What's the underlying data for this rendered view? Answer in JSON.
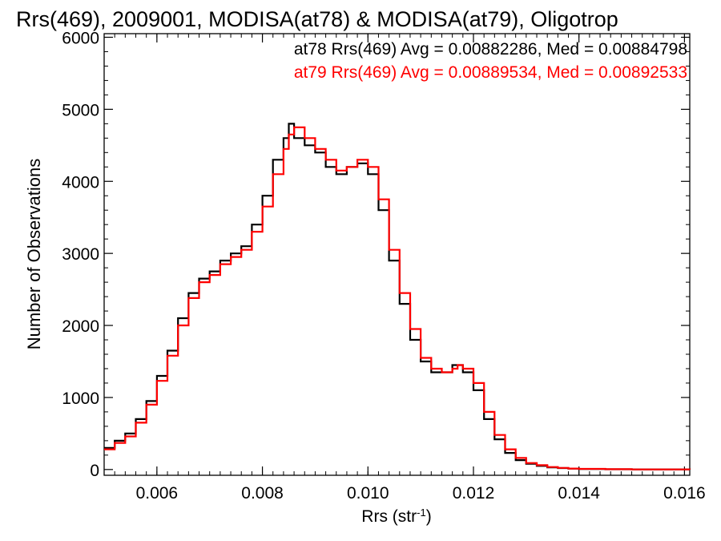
{
  "chart_data": {
    "type": "line",
    "title": "Rrs(469), 2009001, MODISA(at78) & MODISA(at79), Oligotrop",
    "xlabel": "Rrs (str",
    "xlabel_sup": "-1",
    "xlabel_close": ")",
    "ylabel": "Number of Observations",
    "xlim": [
      0.005,
      0.0161
    ],
    "ylim": [
      -80,
      6050
    ],
    "x_ticks": [
      0.006,
      0.008,
      0.01,
      0.012,
      0.014,
      0.016
    ],
    "x_tick_labels": [
      "0.006",
      "0.008",
      "0.010",
      "0.012",
      "0.014",
      "0.016"
    ],
    "y_ticks": [
      0,
      1000,
      2000,
      3000,
      4000,
      5000,
      6000
    ],
    "y_tick_labels": [
      "0",
      "1000",
      "2000",
      "3000",
      "4000",
      "5000",
      "6000"
    ],
    "grid": false,
    "legend_position": "top-right",
    "annotations": [
      {
        "text": "at78 Rrs(469) Avg = 0.00882286, Med = 0.00884798",
        "color": "#000000"
      },
      {
        "text": "at79 Rrs(469) Avg = 0.00889534, Med = 0.00892533",
        "color": "#ff0000"
      }
    ],
    "series": [
      {
        "color": "#000000",
        "x": [
          0.005,
          0.0052,
          0.0054,
          0.0056,
          0.0058,
          0.006,
          0.0062,
          0.0064,
          0.0066,
          0.0068,
          0.007,
          0.0072,
          0.0074,
          0.0076,
          0.0078,
          0.008,
          0.0082,
          0.0084,
          0.0085,
          0.0086,
          0.0088,
          0.009,
          0.0092,
          0.0094,
          0.0096,
          0.0098,
          0.01,
          0.0102,
          0.0104,
          0.0106,
          0.0108,
          0.011,
          0.0112,
          0.0114,
          0.0116,
          0.0117,
          0.0118,
          0.012,
          0.0122,
          0.0124,
          0.0126,
          0.0128,
          0.013,
          0.0132,
          0.0134,
          0.0136,
          0.0138,
          0.014,
          0.0145,
          0.015,
          0.0161
        ],
        "y": [
          300,
          400,
          500,
          700,
          950,
          1300,
          1650,
          2100,
          2450,
          2650,
          2750,
          2900,
          3000,
          3100,
          3400,
          3800,
          4300,
          4600,
          4800,
          4600,
          4500,
          4400,
          4200,
          4100,
          4200,
          4250,
          4100,
          3600,
          2900,
          2300,
          1800,
          1500,
          1350,
          1350,
          1450,
          1450,
          1350,
          1100,
          700,
          420,
          230,
          130,
          80,
          50,
          30,
          20,
          12,
          8,
          3,
          1,
          0
        ]
      },
      {
        "color": "#ff0000",
        "x": [
          0.005,
          0.0052,
          0.0054,
          0.0056,
          0.0058,
          0.006,
          0.0062,
          0.0064,
          0.0066,
          0.0068,
          0.007,
          0.0072,
          0.0074,
          0.0076,
          0.0078,
          0.008,
          0.0082,
          0.0084,
          0.0085,
          0.0086,
          0.0088,
          0.009,
          0.0092,
          0.0094,
          0.0096,
          0.0098,
          0.01,
          0.0102,
          0.0104,
          0.0106,
          0.0108,
          0.011,
          0.0112,
          0.0114,
          0.0116,
          0.0117,
          0.0118,
          0.012,
          0.0122,
          0.0124,
          0.0126,
          0.0128,
          0.013,
          0.0132,
          0.0134,
          0.0136,
          0.0138,
          0.014,
          0.0145,
          0.015,
          0.0161
        ],
        "y": [
          280,
          370,
          460,
          650,
          900,
          1230,
          1580,
          2000,
          2380,
          2600,
          2700,
          2850,
          2950,
          3050,
          3300,
          3650,
          4100,
          4450,
          4650,
          4750,
          4600,
          4450,
          4300,
          4150,
          4200,
          4300,
          4200,
          3750,
          3050,
          2450,
          1950,
          1550,
          1400,
          1350,
          1400,
          1450,
          1400,
          1200,
          800,
          480,
          280,
          160,
          90,
          60,
          35,
          22,
          14,
          9,
          4,
          1,
          0
        ]
      }
    ]
  }
}
